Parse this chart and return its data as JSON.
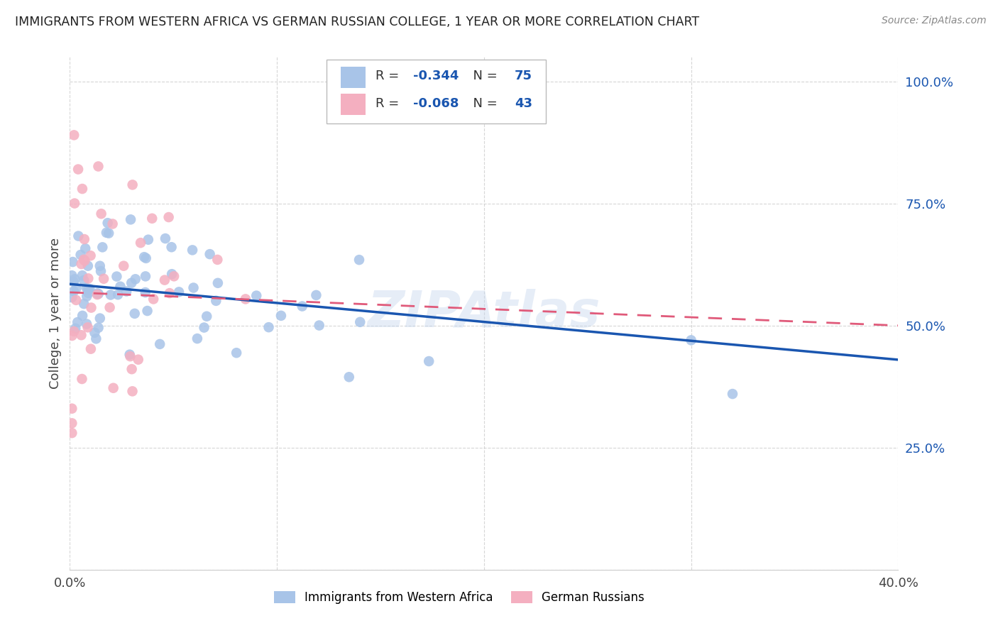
{
  "title": "IMMIGRANTS FROM WESTERN AFRICA VS GERMAN RUSSIAN COLLEGE, 1 YEAR OR MORE CORRELATION CHART",
  "source": "Source: ZipAtlas.com",
  "ylabel": "College, 1 year or more",
  "R1": -0.344,
  "N1": 75,
  "R2": -0.068,
  "N2": 43,
  "blue_color": "#a8c4e8",
  "pink_color": "#f4afc0",
  "blue_line_color": "#1a56b0",
  "pink_line_color": "#e05a7a",
  "blue_line_x0": 0.0,
  "blue_line_y0": 0.585,
  "blue_line_x1": 0.4,
  "blue_line_y1": 0.43,
  "pink_line_x0": 0.0,
  "pink_line_y0": 0.568,
  "pink_line_x1": 0.4,
  "pink_line_y1": 0.5,
  "xlim": [
    0.0,
    0.4
  ],
  "ylim": [
    0.0,
    1.05
  ],
  "yticks": [
    0.0,
    0.25,
    0.5,
    0.75,
    1.0
  ],
  "ytick_labels": [
    "",
    "25.0%",
    "50.0%",
    "75.0%",
    "100.0%"
  ],
  "xtick_labels": [
    "0.0%",
    "",
    "",
    "",
    "40.0%"
  ],
  "watermark": "ZIPAtlas",
  "legend1_label": "Immigrants from Western Africa",
  "legend2_label": "German Russians",
  "grid_color": "#cccccc",
  "title_color": "#222222",
  "source_color": "#888888",
  "yaxis_label_color": "#1a56b0"
}
